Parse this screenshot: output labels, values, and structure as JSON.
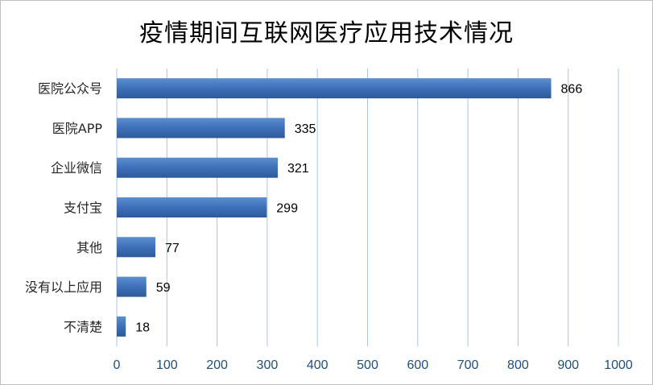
{
  "chart_data": {
    "type": "bar",
    "orientation": "horizontal",
    "title": "疫情期间互联网医疗应用技术情况",
    "categories": [
      "医院公众号",
      "医院APP",
      "企业微信",
      "支付宝",
      "其他",
      "没有以上应用",
      "不清楚"
    ],
    "values": [
      866,
      335,
      321,
      299,
      77,
      59,
      18
    ],
    "xlim": [
      0,
      1000
    ],
    "xticks": [
      0,
      100,
      200,
      300,
      400,
      500,
      600,
      700,
      800,
      900,
      1000
    ],
    "grid": true,
    "data_labels": true,
    "colors": {
      "bar_top": "#5b8fd0",
      "bar_mid": "#3e70b8",
      "bar_bottom": "#2d5a9a",
      "grid": "#a9c4e4",
      "tick_text": "#1f4e79"
    }
  }
}
